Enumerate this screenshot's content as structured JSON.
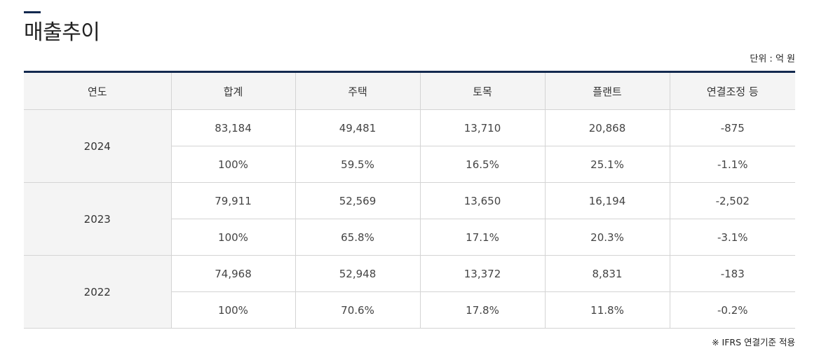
{
  "title": "매출추이",
  "unit": "단위 : 억 원",
  "note": "※ IFRS 연결기준 적용",
  "headers": [
    "연도",
    "합계",
    "주택",
    "토목",
    "플랜트",
    "연결조정 등"
  ],
  "rows": [
    {
      "year": "2024",
      "amounts": [
        "83,184",
        "49,481",
        "13,710",
        "20,868",
        "-875"
      ],
      "ratios": [
        "100%",
        "59.5%",
        "16.5%",
        "25.1%",
        "-1.1%"
      ]
    },
    {
      "year": "2023",
      "amounts": [
        "79,911",
        "52,569",
        "13,650",
        "16,194",
        "-2,502"
      ],
      "ratios": [
        "100%",
        "65.8%",
        "17.1%",
        "20.3%",
        "-3.1%"
      ]
    },
    {
      "year": "2022",
      "amounts": [
        "74,968",
        "52,948",
        "13,372",
        "8,831",
        "-183"
      ],
      "ratios": [
        "100%",
        "70.6%",
        "17.8%",
        "11.8%",
        "-0.2%"
      ]
    }
  ]
}
